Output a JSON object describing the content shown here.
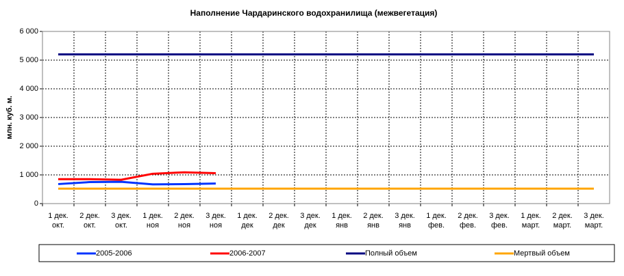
{
  "chart_data": {
    "type": "line",
    "title": "Наполнение Чардаринского водохранилища (межвегетация)",
    "y_label": "млн. куб. м.",
    "categories": [
      [
        "1 дек.",
        "окт."
      ],
      [
        "2 дек.",
        "окт."
      ],
      [
        "3 дек.",
        "окт."
      ],
      [
        "1 дек.",
        "ноя"
      ],
      [
        "2 дек.",
        "ноя"
      ],
      [
        "3 дек.",
        "ноя"
      ],
      [
        "1 дек.",
        "дек"
      ],
      [
        "2 дек.",
        "дек"
      ],
      [
        "3 дек.",
        "дек"
      ],
      [
        "1 дек.",
        "янв"
      ],
      [
        "2 дек.",
        "янв"
      ],
      [
        "3 дек.",
        "янв"
      ],
      [
        "1 дек.",
        "фев."
      ],
      [
        "2 дек.",
        "фев."
      ],
      [
        "3 дек.",
        "фев."
      ],
      [
        "1 дек.",
        "март."
      ],
      [
        "2 дек.",
        "март."
      ],
      [
        "3 дек.",
        "март."
      ]
    ],
    "series": [
      {
        "name": "2005-2006",
        "color": "#0033ff",
        "values": [
          680,
          750,
          760,
          670,
          680,
          700,
          null,
          null,
          null,
          null,
          null,
          null,
          null,
          null,
          null,
          null,
          null,
          null
        ]
      },
      {
        "name": "2006-2007",
        "color": "#ff0000",
        "values": [
          850,
          850,
          830,
          1040,
          1090,
          1060,
          null,
          null,
          null,
          null,
          null,
          null,
          null,
          null,
          null,
          null,
          null,
          null
        ]
      },
      {
        "name": "Полный объем",
        "color": "#000080",
        "values": [
          5200,
          5200,
          5200,
          5200,
          5200,
          5200,
          5200,
          5200,
          5200,
          5200,
          5200,
          5200,
          5200,
          5200,
          5200,
          5200,
          5200,
          5200
        ]
      },
      {
        "name": "Мертвый объем",
        "color": "#ffa500",
        "values": [
          520,
          520,
          520,
          520,
          520,
          520,
          520,
          520,
          520,
          520,
          520,
          520,
          520,
          520,
          520,
          520,
          520,
          520
        ]
      }
    ],
    "ylim": [
      0,
      6000
    ],
    "yticks": [
      0,
      {
        "value": 1000,
        "label": "1 000"
      },
      {
        "value": 2000,
        "label": "2 000"
      },
      {
        "value": 3000,
        "label": "3 000"
      },
      {
        "value": 4000,
        "label": "4 000"
      },
      {
        "value": 5000,
        "label": "5 000"
      },
      {
        "value": 6000,
        "label": "6 000"
      }
    ],
    "grid": true,
    "legend": "bottom"
  }
}
